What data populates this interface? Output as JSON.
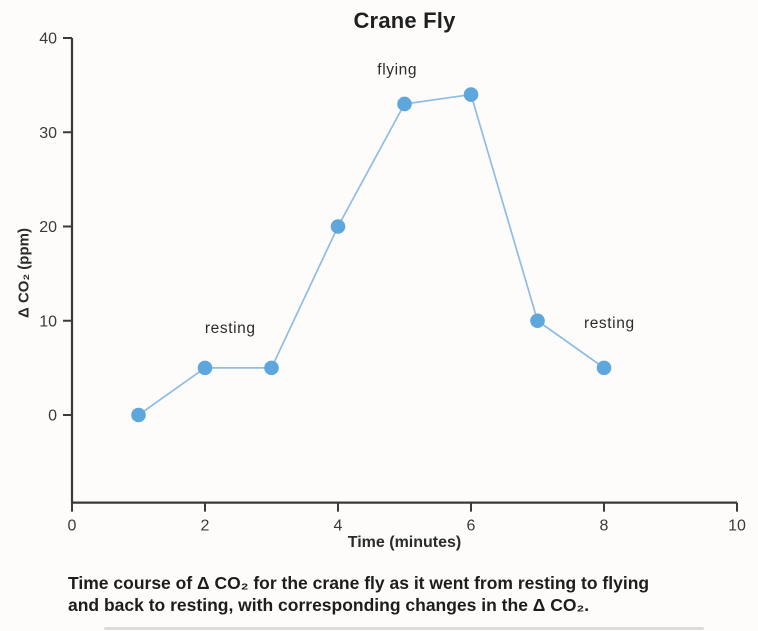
{
  "chart_data": {
    "type": "line",
    "title": "Crane Fly",
    "xlabel": "Time (minutes)",
    "ylabel": "Δ CO₂ (ppm)",
    "x": [
      1,
      2,
      3,
      4,
      5,
      6,
      7,
      8
    ],
    "y": [
      0,
      5,
      5,
      20,
      33,
      34,
      10,
      5
    ],
    "xlim": [
      0,
      10
    ],
    "ylim": [
      -9.3,
      40
    ],
    "xticks": [
      0,
      2,
      4,
      6,
      8,
      10
    ],
    "yticks": [
      0,
      10,
      20,
      30,
      40
    ],
    "grid": false,
    "legend": "none",
    "line_color": "#8fbde6",
    "marker_color": "#5ea7dc",
    "axis_color": "#3a3a3a",
    "annotations": [
      {
        "text": "resting",
        "x": 2.38,
        "y": 9.2
      },
      {
        "text": "flying",
        "x": 4.89,
        "y": 36.6
      },
      {
        "text": "resting",
        "x": 8.08,
        "y": 9.7
      }
    ]
  },
  "caption": {
    "line1": "Time course of Δ CO₂ for the crane fly as it went from resting to flying",
    "line2": "and back to resting, with corresponding changes in the Δ CO₂."
  }
}
